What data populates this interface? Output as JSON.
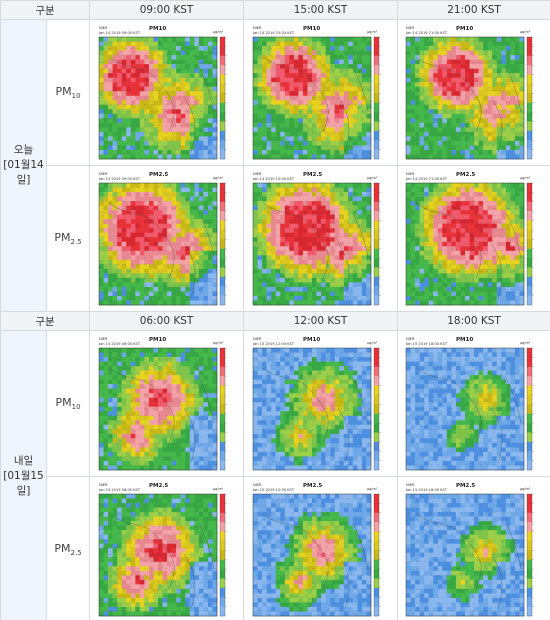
{
  "sections": [
    {
      "header_label": "구분",
      "day_label": "오늘",
      "date_label": "[01월14일]",
      "times": [
        "09:00 KST",
        "15:00 KST",
        "21:00 KST"
      ],
      "rows": [
        {
          "pm_label": "PM",
          "pm_sub": "10",
          "maps": [
            {
              "title": "PM10",
              "stamp": "Jan 14 2019 09:00 KST",
              "agency": "NIER",
              "unit": "μg/m³"
            },
            {
              "title": "PM10",
              "stamp": "Jan 14 2019 15:00 KST",
              "agency": "NIER",
              "unit": "μg/m³"
            },
            {
              "title": "PM10",
              "stamp": "Jan 14 2019 21:00 KST",
              "agency": "NIER",
              "unit": "μg/m³"
            }
          ]
        },
        {
          "pm_label": "PM",
          "pm_sub": "2.5",
          "maps": [
            {
              "title": "PM2.5",
              "stamp": "Jan 14 2019 09:00 KST",
              "agency": "NIER",
              "unit": "μg/m³"
            },
            {
              "title": "PM2.5",
              "stamp": "Jan 14 2019 15:00 KST",
              "agency": "NIER",
              "unit": "μg/m³"
            },
            {
              "title": "PM2.5",
              "stamp": "Jan 14 2019 21:00 KST",
              "agency": "NIER",
              "unit": "μg/m³"
            }
          ]
        }
      ]
    },
    {
      "header_label": "구분",
      "day_label": "내일",
      "date_label": "[01월15일]",
      "times": [
        "06:00 KST",
        "12:00 KST",
        "18:00 KST"
      ],
      "rows": [
        {
          "pm_label": "PM",
          "pm_sub": "10",
          "maps": [
            {
              "title": "PM10",
              "stamp": "Jan 15 2019 06:00 KST",
              "agency": "NIER",
              "unit": "μg/m³"
            },
            {
              "title": "PM10",
              "stamp": "Jan 15 2019 12:00 KST",
              "agency": "NIER",
              "unit": "μg/m³"
            },
            {
              "title": "PM10",
              "stamp": "Jan 15 2019 18:00 KST",
              "agency": "NIER",
              "unit": "μg/m³"
            }
          ]
        },
        {
          "pm_label": "PM",
          "pm_sub": "2.5",
          "maps": [
            {
              "title": "PM2.5",
              "stamp": "Jan 15 2019 06:00 KST",
              "agency": "NIER",
              "unit": "μg/m³"
            },
            {
              "title": "PM2.5",
              "stamp": "Jan 15 2019 12:00 KST",
              "agency": "NIER",
              "unit": "μg/m³"
            },
            {
              "title": "PM2.5",
              "stamp": "Jan 15 2019 18:00 KST",
              "agency": "NIER",
              "unit": "μg/m³"
            }
          ]
        }
      ]
    }
  ],
  "colors": {
    "header_bg": "#f1f3f6",
    "day_bg": "#eef5fc",
    "border": "#d6d9de",
    "very_bad": "#e8323a",
    "bad": "#e6d21f",
    "moderate": "#44b84a",
    "good": "#4d8fe0"
  }
}
